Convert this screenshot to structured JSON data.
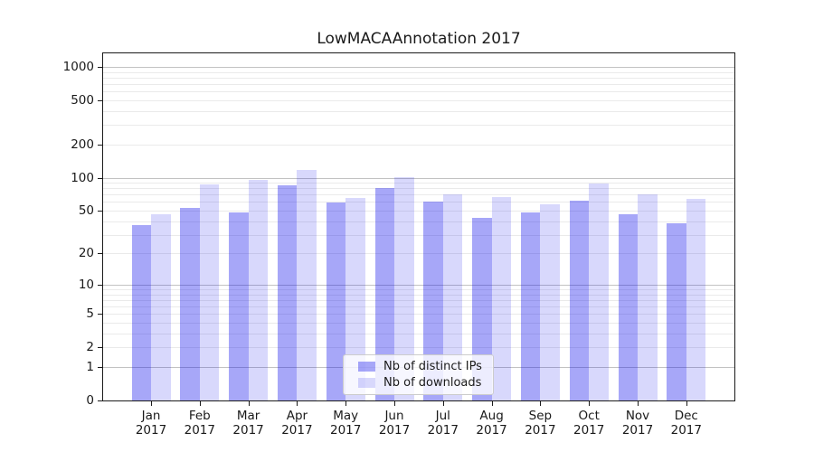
{
  "chart_data": {
    "type": "bar",
    "title": "LowMACAAnnotation 2017",
    "categories": [
      "Jan 2017",
      "Feb 2017",
      "Mar 2017",
      "Apr 2017",
      "May 2017",
      "Jun 2017",
      "Jul 2017",
      "Aug 2017",
      "Sep 2017",
      "Oct 2017",
      "Nov 2017",
      "Dec 2017"
    ],
    "series": [
      {
        "name": "Nb of distinct IPs",
        "values": [
          37,
          53,
          48,
          85,
          59,
          81,
          61,
          43,
          48,
          62,
          46,
          38
        ],
        "color": "#0c0cec",
        "alpha": 0.36
      },
      {
        "name": "Nb of downloads",
        "values": [
          46,
          87,
          95,
          118,
          65,
          101,
          70,
          67,
          57,
          88,
          71,
          64
        ],
        "color": "#0c0cec",
        "alpha": 0.16
      }
    ],
    "xlabel": "",
    "ylabel": "",
    "yscale": "log1p",
    "ylim": [
      0,
      1400
    ],
    "yticks": [
      0,
      1,
      2,
      5,
      10,
      20,
      50,
      100,
      200,
      500,
      1000
    ],
    "grid": "horizontal",
    "legend_position": "lower-center-inside",
    "colors": {
      "bar_ips_rendered": "#a9a9f8",
      "bar_downloads_rendered": "#d9d9fa",
      "grid_major": "#c2c2c2",
      "grid_minor": "#eaeaea",
      "spine": "#1a1a1a",
      "text": "#1a1a1a",
      "legend_border": "#cccccc",
      "legend_background": "#ffffff"
    }
  }
}
